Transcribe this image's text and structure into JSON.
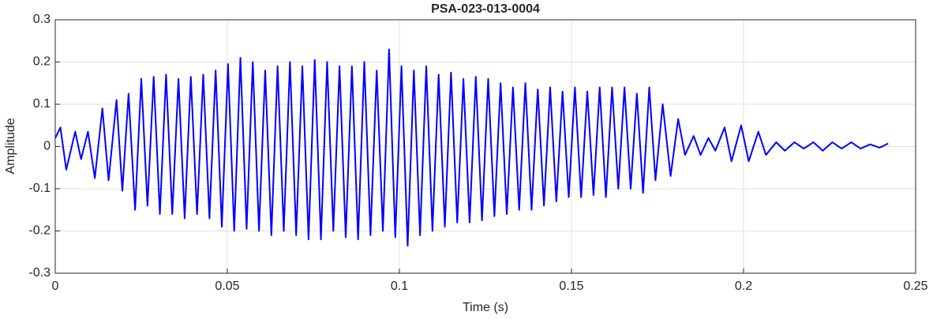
{
  "chart_data": {
    "type": "line",
    "title": "PSA-023-013-0004",
    "xlabel": "Time (s)",
    "ylabel": "Amplitude",
    "xlim": [
      0,
      0.25
    ],
    "ylim": [
      -0.3,
      0.3
    ],
    "xticks": [
      0,
      0.05,
      0.1,
      0.15,
      0.2,
      0.25
    ],
    "yticks": [
      -0.3,
      -0.2,
      -0.1,
      0,
      0.1,
      0.2,
      0.3
    ],
    "grid": true,
    "x": [
      0,
      0.0015,
      0.0032,
      0.0058,
      0.0075,
      0.0095,
      0.0115,
      0.0137,
      0.0155,
      0.0178,
      0.0195,
      0.0213,
      0.0232,
      0.025,
      0.0268,
      0.0286,
      0.0304,
      0.0322,
      0.034,
      0.0358,
      0.0376,
      0.0394,
      0.0412,
      0.043,
      0.0448,
      0.0466,
      0.0484,
      0.0502,
      0.052,
      0.0538,
      0.0556,
      0.0574,
      0.0592,
      0.061,
      0.0628,
      0.0646,
      0.0664,
      0.0682,
      0.07,
      0.0718,
      0.0736,
      0.0754,
      0.0772,
      0.079,
      0.0808,
      0.0826,
      0.0844,
      0.0862,
      0.088,
      0.0898,
      0.0916,
      0.0934,
      0.0952,
      0.097,
      0.0988,
      0.1006,
      0.1024,
      0.1042,
      0.106,
      0.1078,
      0.1096,
      0.1114,
      0.1132,
      0.115,
      0.1168,
      0.1186,
      0.1204,
      0.1222,
      0.124,
      0.1258,
      0.1276,
      0.1294,
      0.1312,
      0.133,
      0.1348,
      0.1366,
      0.1384,
      0.1402,
      0.142,
      0.1438,
      0.1456,
      0.1474,
      0.1492,
      0.151,
      0.1528,
      0.1546,
      0.1564,
      0.1582,
      0.16,
      0.1618,
      0.1636,
      0.1654,
      0.1672,
      0.169,
      0.1708,
      0.1726,
      0.1744,
      0.1765,
      0.1788,
      0.181,
      0.183,
      0.1855,
      0.1875,
      0.1898,
      0.1918,
      0.1945,
      0.1965,
      0.1993,
      0.2015,
      0.2043,
      0.2065,
      0.2095,
      0.212,
      0.2148,
      0.2175,
      0.2203,
      0.223,
      0.2258,
      0.2285,
      0.2313,
      0.234,
      0.2368,
      0.2395,
      0.242
    ],
    "series": [
      {
        "name": "Amplitude",
        "color": "#0000ff",
        "values": [
          0.02,
          0.045,
          -0.055,
          0.035,
          -0.03,
          0.035,
          -0.075,
          0.09,
          -0.08,
          0.11,
          -0.105,
          0.125,
          -0.15,
          0.16,
          -0.14,
          0.165,
          -0.16,
          0.17,
          -0.16,
          0.16,
          -0.17,
          0.165,
          -0.16,
          0.17,
          -0.17,
          0.18,
          -0.19,
          0.195,
          -0.2,
          0.21,
          -0.195,
          0.2,
          -0.2,
          0.18,
          -0.21,
          0.19,
          -0.2,
          0.2,
          -0.21,
          0.19,
          -0.22,
          0.205,
          -0.22,
          0.2,
          -0.2,
          0.19,
          -0.215,
          0.19,
          -0.22,
          0.2,
          -0.21,
          0.18,
          -0.2,
          0.23,
          -0.215,
          0.19,
          -0.235,
          0.18,
          -0.21,
          0.19,
          -0.2,
          0.17,
          -0.19,
          0.175,
          -0.18,
          0.16,
          -0.18,
          0.165,
          -0.175,
          0.16,
          -0.165,
          0.15,
          -0.16,
          0.14,
          -0.15,
          0.15,
          -0.15,
          0.135,
          -0.14,
          0.14,
          -0.13,
          0.13,
          -0.12,
          0.14,
          -0.12,
          0.13,
          -0.115,
          0.14,
          -0.12,
          0.14,
          -0.1,
          0.14,
          -0.1,
          0.125,
          -0.11,
          0.14,
          -0.08,
          0.1,
          -0.07,
          0.065,
          -0.02,
          0.025,
          -0.02,
          0.02,
          -0.01,
          0.045,
          -0.035,
          0.05,
          -0.035,
          0.035,
          -0.02,
          0.01,
          -0.01,
          0.01,
          -0.005,
          0.01,
          -0.01,
          0.01,
          -0.005,
          0.01,
          -0.005,
          0.005,
          -0.003,
          0.007
        ]
      }
    ]
  }
}
